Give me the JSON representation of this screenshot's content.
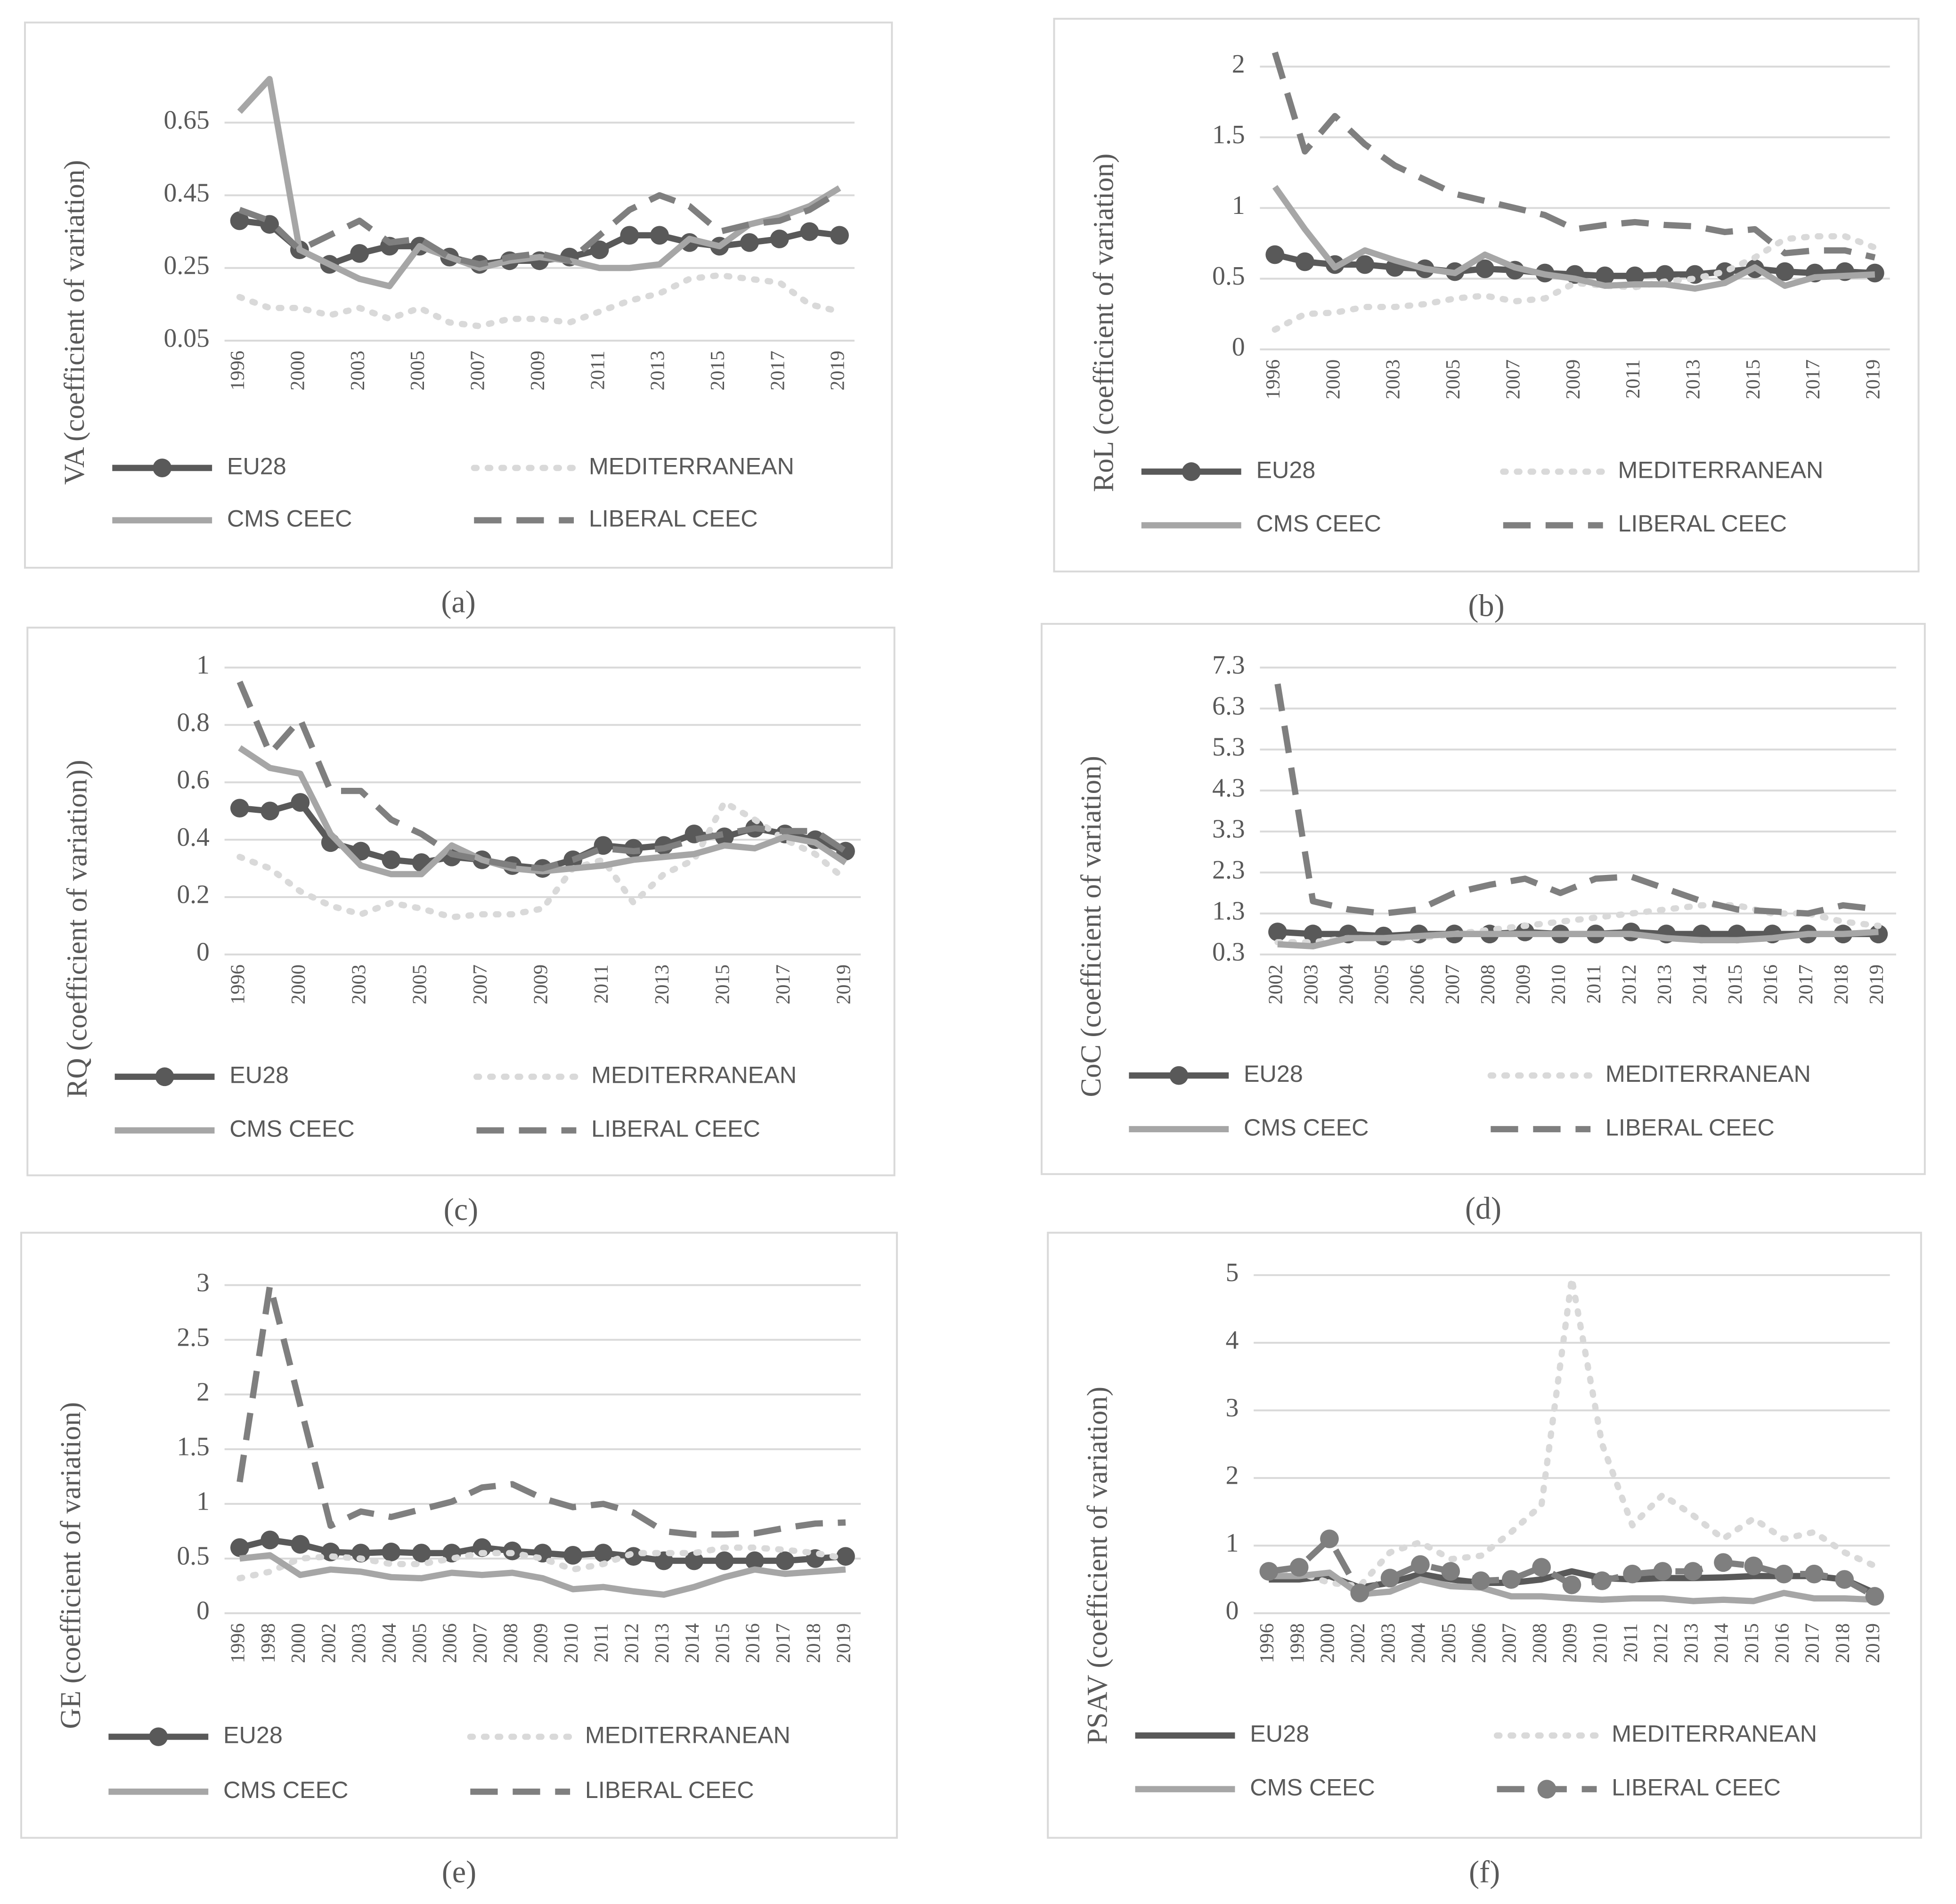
{
  "chart_data": [
    {
      "type": "line",
      "y_label": "VA (coefficient of variation)",
      "panel_label": "(a)",
      "categories": [
        "1996",
        null,
        "2000",
        null,
        "2003",
        null,
        "2005",
        null,
        "2007",
        null,
        "2009",
        null,
        "2011",
        null,
        "2013",
        null,
        "2015",
        null,
        "2017",
        null,
        "2019"
      ],
      "ylim": [
        0.05,
        0.85
      ],
      "yticks": [
        0.05,
        0.25,
        0.45,
        0.65
      ],
      "grid": true,
      "legend": "bottom",
      "series": [
        {
          "name": "EU28",
          "color": "#595959",
          "dash": "solid",
          "marker": true,
          "values": [
            0.38,
            0.37,
            0.3,
            0.26,
            0.29,
            0.31,
            0.31,
            0.28,
            0.26,
            0.27,
            0.27,
            0.28,
            0.3,
            0.34,
            0.34,
            0.32,
            0.31,
            0.32,
            0.33,
            0.35,
            0.34
          ]
        },
        {
          "name": "MEDITERRANEAN",
          "color": "#d9d9d9",
          "dash": "dotted",
          "marker": false,
          "values": [
            0.17,
            0.14,
            0.14,
            0.12,
            0.14,
            0.11,
            0.14,
            0.1,
            0.09,
            0.11,
            0.11,
            0.1,
            0.13,
            0.16,
            0.18,
            0.22,
            0.23,
            0.22,
            0.21,
            0.15,
            0.13
          ]
        },
        {
          "name": "CMS CEEC",
          "color": "#a6a6a6",
          "dash": "solid",
          "marker": false,
          "values": [
            0.68,
            0.77,
            0.3,
            0.26,
            0.22,
            0.2,
            0.31,
            0.28,
            0.25,
            0.27,
            0.28,
            0.27,
            0.25,
            0.25,
            0.26,
            0.33,
            0.31,
            0.37,
            0.39,
            0.42,
            0.47
          ]
        },
        {
          "name": "LIBERAL CEEC",
          "color": "#7f7f7f",
          "dash": "dashed",
          "marker": false,
          "values": [
            0.41,
            0.38,
            0.3,
            0.34,
            0.38,
            0.32,
            0.33,
            0.28,
            0.26,
            0.28,
            0.29,
            0.27,
            0.34,
            0.41,
            0.45,
            0.42,
            0.35,
            0.37,
            0.38,
            0.41,
            0.46
          ]
        }
      ]
    },
    {
      "type": "line",
      "y_label": "RoL (coefficient of variation)",
      "panel_label": "(b)",
      "categories": [
        "1996",
        null,
        "2000",
        null,
        "2003",
        null,
        "2005",
        null,
        "2007",
        null,
        "2009",
        null,
        "2011",
        null,
        "2013",
        null,
        "2015",
        null,
        "2017",
        null,
        "2019"
      ],
      "ylim": [
        0,
        2.1
      ],
      "yticks": [
        0,
        0.5,
        1,
        1.5,
        2
      ],
      "grid": true,
      "legend": "bottom",
      "series": [
        {
          "name": "EU28",
          "color": "#595959",
          "dash": "solid",
          "marker": true,
          "values": [
            0.67,
            0.62,
            0.6,
            0.6,
            0.58,
            0.57,
            0.55,
            0.57,
            0.56,
            0.54,
            0.53,
            0.52,
            0.52,
            0.53,
            0.53,
            0.55,
            0.57,
            0.55,
            0.54,
            0.55,
            0.54
          ]
        },
        {
          "name": "MEDITERRANEAN",
          "color": "#d9d9d9",
          "dash": "dotted",
          "marker": false,
          "values": [
            0.14,
            0.25,
            0.26,
            0.3,
            0.3,
            0.32,
            0.36,
            0.38,
            0.34,
            0.36,
            0.47,
            0.45,
            0.44,
            0.48,
            0.5,
            0.55,
            0.65,
            0.78,
            0.8,
            0.8,
            0.72
          ]
        },
        {
          "name": "CMS CEEC",
          "color": "#a6a6a6",
          "dash": "solid",
          "marker": false,
          "values": [
            1.15,
            0.85,
            0.58,
            0.7,
            0.63,
            0.57,
            0.54,
            0.67,
            0.58,
            0.53,
            0.5,
            0.45,
            0.46,
            0.46,
            0.43,
            0.47,
            0.58,
            0.45,
            0.51,
            0.52,
            0.53
          ]
        },
        {
          "name": "LIBERAL CEEC",
          "color": "#7f7f7f",
          "dash": "dashed",
          "marker": false,
          "values": [
            2.1,
            1.4,
            1.65,
            1.45,
            1.3,
            1.2,
            1.1,
            1.05,
            1.0,
            0.95,
            0.85,
            0.88,
            0.9,
            0.88,
            0.87,
            0.83,
            0.85,
            0.68,
            0.7,
            0.7,
            0.65
          ]
        }
      ]
    },
    {
      "type": "line",
      "y_label": "RQ (coefficient of variation))",
      "panel_label": "(c)",
      "categories": [
        "1996",
        null,
        "2000",
        null,
        "2003",
        null,
        "2005",
        null,
        "2007",
        null,
        "2009",
        null,
        "2011",
        null,
        "2013",
        null,
        "2015",
        null,
        "2017",
        null,
        "2019"
      ],
      "ylim": [
        0,
        1
      ],
      "yticks": [
        0,
        0.2,
        0.4,
        0.6,
        0.8,
        1
      ],
      "grid": true,
      "legend": "bottom",
      "series": [
        {
          "name": "EU28",
          "color": "#595959",
          "dash": "solid",
          "marker": true,
          "values": [
            0.51,
            0.5,
            0.53,
            0.39,
            0.36,
            0.33,
            0.32,
            0.34,
            0.33,
            0.31,
            0.3,
            0.33,
            0.38,
            0.37,
            0.38,
            0.42,
            0.41,
            0.44,
            0.42,
            0.4,
            0.36
          ]
        },
        {
          "name": "MEDITERRANEAN",
          "color": "#d9d9d9",
          "dash": "dotted",
          "marker": false,
          "values": [
            0.34,
            0.3,
            0.22,
            0.17,
            0.14,
            0.18,
            0.16,
            0.13,
            0.14,
            0.14,
            0.16,
            0.3,
            0.33,
            0.18,
            0.28,
            0.33,
            0.53,
            0.47,
            0.4,
            0.35,
            0.26
          ]
        },
        {
          "name": "CMS CEEC",
          "color": "#a6a6a6",
          "dash": "solid",
          "marker": false,
          "values": [
            0.72,
            0.65,
            0.63,
            0.42,
            0.31,
            0.28,
            0.28,
            0.38,
            0.33,
            0.3,
            0.29,
            0.3,
            0.31,
            0.33,
            0.34,
            0.35,
            0.38,
            0.37,
            0.41,
            0.39,
            0.32
          ]
        },
        {
          "name": "LIBERAL CEEC",
          "color": "#7f7f7f",
          "dash": "dashed",
          "marker": false,
          "values": [
            0.95,
            0.7,
            0.82,
            0.57,
            0.57,
            0.47,
            0.42,
            0.35,
            0.33,
            0.31,
            0.3,
            0.33,
            0.37,
            0.36,
            0.37,
            0.4,
            0.42,
            0.44,
            0.43,
            0.43,
            0.36
          ]
        }
      ]
    },
    {
      "type": "line",
      "y_label": "CoC (coefficient of variation)",
      "panel_label": "(d)",
      "categories": [
        "2002",
        "2003",
        "2004",
        "2005",
        "2006",
        "2007",
        "2008",
        "2009",
        "2010",
        "2011",
        "2012",
        "2013",
        "2014",
        "2015",
        "2016",
        "2017",
        "2018",
        "2019"
      ],
      "ylim": [
        0.3,
        7.3
      ],
      "yticks": [
        0.3,
        1.3,
        2.3,
        3.3,
        4.3,
        5.3,
        6.3,
        7.3
      ],
      "grid": true,
      "legend": "bottom",
      "series": [
        {
          "name": "EU28",
          "color": "#595959",
          "dash": "solid",
          "marker": true,
          "values": [
            0.85,
            0.8,
            0.8,
            0.75,
            0.8,
            0.8,
            0.8,
            0.85,
            0.8,
            0.8,
            0.85,
            0.8,
            0.8,
            0.8,
            0.8,
            0.8,
            0.8,
            0.8
          ]
        },
        {
          "name": "MEDITERRANEAN",
          "color": "#d9d9d9",
          "dash": "dotted",
          "marker": false,
          "values": [
            0.6,
            0.6,
            0.7,
            0.7,
            0.7,
            0.8,
            0.9,
            1.0,
            1.1,
            1.2,
            1.3,
            1.4,
            1.5,
            1.5,
            1.3,
            1.3,
            1.1,
            1.0
          ]
        },
        {
          "name": "CMS CEEC",
          "color": "#a6a6a6",
          "dash": "solid",
          "marker": false,
          "values": [
            0.55,
            0.5,
            0.7,
            0.7,
            0.75,
            0.8,
            0.8,
            0.8,
            0.8,
            0.8,
            0.8,
            0.7,
            0.65,
            0.65,
            0.7,
            0.8,
            0.8,
            0.85
          ]
        },
        {
          "name": "LIBERAL CEEC",
          "color": "#7f7f7f",
          "dash": "dashed",
          "marker": false,
          "values": [
            6.9,
            1.6,
            1.4,
            1.3,
            1.4,
            1.8,
            2.0,
            2.15,
            1.8,
            2.15,
            2.2,
            1.9,
            1.6,
            1.4,
            1.35,
            1.3,
            1.5,
            1.4
          ]
        }
      ]
    },
    {
      "type": "line",
      "y_label": "GE (coefficient of variation)",
      "panel_label": "(e)",
      "categories": [
        "1996",
        "1998",
        "2000",
        "2002",
        "2003",
        "2004",
        "2005",
        "2006",
        "2007",
        "2008",
        "2009",
        "2010",
        "2011",
        "2012",
        "2013",
        "2014",
        "2015",
        "2016",
        "2017",
        "2018",
        "2019"
      ],
      "ylim": [
        0,
        3
      ],
      "yticks": [
        0,
        0.5,
        1,
        1.5,
        2,
        2.5,
        3
      ],
      "grid": true,
      "legend": "bottom",
      "series": [
        {
          "name": "EU28",
          "color": "#595959",
          "dash": "solid",
          "marker": true,
          "values": [
            0.6,
            0.67,
            0.63,
            0.56,
            0.55,
            0.56,
            0.55,
            0.55,
            0.6,
            0.57,
            0.55,
            0.53,
            0.55,
            0.52,
            0.48,
            0.48,
            0.48,
            0.48,
            0.48,
            0.5,
            0.52
          ]
        },
        {
          "name": "MEDITERRANEAN",
          "color": "#d9d9d9",
          "dash": "dotted",
          "marker": false,
          "values": [
            0.32,
            0.38,
            0.5,
            0.52,
            0.5,
            0.45,
            0.45,
            0.5,
            0.55,
            0.55,
            0.5,
            0.4,
            0.45,
            0.55,
            0.55,
            0.55,
            0.6,
            0.6,
            0.58,
            0.55,
            0.5
          ]
        },
        {
          "name": "CMS CEEC",
          "color": "#a6a6a6",
          "dash": "solid",
          "marker": false,
          "values": [
            0.5,
            0.53,
            0.35,
            0.4,
            0.38,
            0.33,
            0.32,
            0.37,
            0.35,
            0.37,
            0.32,
            0.22,
            0.24,
            0.2,
            0.17,
            0.24,
            0.33,
            0.4,
            0.36,
            0.38,
            0.4
          ]
        },
        {
          "name": "LIBERAL CEEC",
          "color": "#7f7f7f",
          "dash": "dashed",
          "marker": false,
          "values": [
            1.2,
            3.0,
            1.9,
            0.8,
            0.93,
            0.88,
            0.95,
            1.02,
            1.15,
            1.18,
            1.05,
            0.97,
            1.0,
            0.92,
            0.75,
            0.72,
            0.72,
            0.73,
            0.78,
            0.82,
            0.83
          ]
        }
      ]
    },
    {
      "type": "line",
      "y_label": "PSAV (coefficient of variation)",
      "panel_label": "(f)",
      "categories": [
        "1996",
        "1998",
        "2000",
        "2002",
        "2003",
        "2004",
        "2005",
        "2006",
        "2007",
        "2008",
        "2009",
        "2010",
        "2011",
        "2012",
        "2013",
        "2014",
        "2015",
        "2016",
        "2017",
        "2018",
        "2019"
      ],
      "ylim": [
        0,
        5
      ],
      "yticks": [
        0,
        1,
        2,
        3,
        4,
        5
      ],
      "grid": true,
      "legend": "bottom",
      "series": [
        {
          "name": "EU28",
          "color": "#595959",
          "dash": "solid",
          "marker": false,
          "values": [
            0.5,
            0.5,
            0.55,
            0.38,
            0.45,
            0.58,
            0.5,
            0.45,
            0.45,
            0.5,
            0.62,
            0.52,
            0.5,
            0.52,
            0.52,
            0.53,
            0.55,
            0.55,
            0.55,
            0.5,
            0.3
          ]
        },
        {
          "name": "MEDITERRANEAN",
          "color": "#d9d9d9",
          "dash": "dotted",
          "marker": false,
          "values": [
            0.55,
            0.6,
            0.45,
            0.4,
            0.9,
            1.05,
            0.8,
            0.85,
            1.2,
            1.6,
            4.95,
            2.5,
            1.3,
            1.75,
            1.45,
            1.1,
            1.4,
            1.1,
            1.2,
            0.9,
            0.7
          ]
        },
        {
          "name": "CMS CEEC",
          "color": "#a6a6a6",
          "dash": "solid",
          "marker": false,
          "values": [
            0.55,
            0.55,
            0.6,
            0.28,
            0.32,
            0.5,
            0.4,
            0.38,
            0.25,
            0.25,
            0.22,
            0.2,
            0.22,
            0.22,
            0.18,
            0.2,
            0.18,
            0.3,
            0.22,
            0.22,
            0.2
          ]
        },
        {
          "name": "LIBERAL CEEC",
          "color": "#7f7f7f",
          "dash": "dashed",
          "marker": true,
          "values": [
            0.62,
            0.68,
            1.1,
            0.3,
            0.52,
            0.72,
            0.62,
            0.48,
            0.5,
            0.68,
            0.42,
            0.48,
            0.58,
            0.62,
            0.62,
            0.75,
            0.7,
            0.58,
            0.58,
            0.5,
            0.25
          ]
        }
      ]
    }
  ]
}
